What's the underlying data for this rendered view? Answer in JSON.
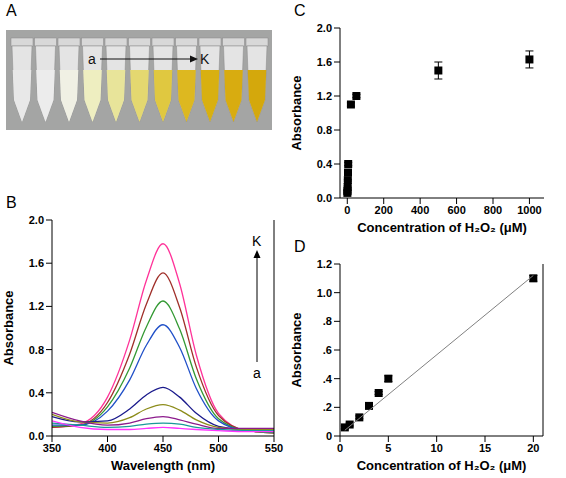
{
  "photo": {
    "panel_label": "A",
    "annotations": [
      "a",
      "K"
    ]
  },
  "chart_data": [
    {
      "panel_label": "B",
      "type": "line",
      "x_label": "Wavelength (nm)",
      "y_label": "Absorbance",
      "annotations": [
        "K",
        "a"
      ],
      "x": [
        350,
        375,
        400,
        420,
        435,
        450,
        465,
        480,
        500,
        525,
        550
      ],
      "series": [
        {
          "color": "#ff3399",
          "values": [
            0.08,
            0.11,
            0.36,
            0.89,
            1.44,
            1.78,
            1.41,
            0.75,
            0.21,
            0.05,
            0.03
          ]
        },
        {
          "color": "#a0302a",
          "values": [
            0.08,
            0.1,
            0.31,
            0.76,
            1.22,
            1.51,
            1.19,
            0.64,
            0.19,
            0.05,
            0.03
          ]
        },
        {
          "color": "#339933",
          "values": [
            0.09,
            0.1,
            0.27,
            0.63,
            1.01,
            1.25,
            0.99,
            0.53,
            0.16,
            0.05,
            0.03
          ]
        },
        {
          "color": "#2050c8",
          "values": [
            0.1,
            0.1,
            0.23,
            0.52,
            0.84,
            1.03,
            0.82,
            0.44,
            0.14,
            0.05,
            0.04
          ]
        },
        {
          "color": "#1a1a8c",
          "values": [
            0.18,
            0.13,
            0.14,
            0.25,
            0.38,
            0.45,
            0.36,
            0.21,
            0.09,
            0.06,
            0.06
          ]
        },
        {
          "color": "#8c8c1a",
          "values": [
            0.2,
            0.13,
            0.12,
            0.17,
            0.25,
            0.29,
            0.24,
            0.15,
            0.08,
            0.06,
            0.06
          ]
        },
        {
          "color": "#8c1a8c",
          "values": [
            0.22,
            0.14,
            0.1,
            0.12,
            0.16,
            0.18,
            0.15,
            0.11,
            0.07,
            0.07,
            0.07
          ]
        },
        {
          "color": "#1a9a9a",
          "values": [
            0.12,
            0.1,
            0.08,
            0.09,
            0.11,
            0.12,
            0.11,
            0.08,
            0.06,
            0.05,
            0.05
          ]
        },
        {
          "color": "#ff33ff",
          "values": [
            0.14,
            0.08,
            0.06,
            0.06,
            0.07,
            0.08,
            0.07,
            0.06,
            0.05,
            0.04,
            0.04
          ]
        }
      ],
      "xlim": [
        350,
        550
      ],
      "xticks": [
        350,
        400,
        450,
        500,
        550
      ],
      "ylim": [
        0,
        2
      ],
      "yticks": [
        {
          "value": 0,
          "label": "0.0"
        },
        {
          "value": 0.4,
          "label": "0.4"
        },
        {
          "value": 0.8,
          "label": "0.8"
        },
        {
          "value": 1.2,
          "label": "1.2"
        },
        {
          "value": 1.6,
          "label": "1.6"
        },
        {
          "value": 2,
          "label": "2.0"
        }
      ]
    },
    {
      "panel_label": "C",
      "type": "scatter",
      "x_label": "Concentration of H₂O₂ (μM)",
      "y_label": "Absorbance",
      "series": [
        {
          "type": "scatter",
          "marker": "square",
          "color": "#000000",
          "x": [
            0.5,
            1,
            2,
            3,
            4,
            5,
            20,
            50,
            500,
            1000
          ],
          "values": [
            0.06,
            0.08,
            0.13,
            0.21,
            0.3,
            0.4,
            1.1,
            1.2,
            1.5,
            1.63
          ],
          "error": [
            0.01,
            0.01,
            0.01,
            0.01,
            0.01,
            0.02,
            0.02,
            0.02,
            0.1,
            0.1
          ]
        }
      ],
      "xlim": [
        -40,
        1080
      ],
      "xticks": [
        0,
        200,
        400,
        600,
        800,
        1000
      ],
      "ylim": [
        0,
        2
      ],
      "yticks": [
        {
          "value": 0,
          "label": "0.0"
        },
        {
          "value": 0.4,
          "label": "0.4"
        },
        {
          "value": 0.8,
          "label": "0.8"
        },
        {
          "value": 1.2,
          "label": "1.2"
        },
        {
          "value": 1.6,
          "label": "1.6"
        },
        {
          "value": 2,
          "label": "2.0"
        }
      ]
    },
    {
      "panel_label": "D",
      "type": "scatter",
      "x_label": "Concentration of H₂O₂ (μM)",
      "y_label": "Absorbance",
      "series": [
        {
          "type": "scatter",
          "marker": "square",
          "color": "#000000",
          "x": [
            0.5,
            1,
            2,
            3,
            4,
            5,
            20
          ],
          "values": [
            0.06,
            0.08,
            0.13,
            0.21,
            0.3,
            0.4,
            1.1
          ],
          "error": [
            0.01,
            0.01,
            0.01,
            0.01,
            0.01,
            0.02,
            0.02
          ]
        },
        {
          "type": "line",
          "color": "#808080",
          "x": [
            0.5,
            20
          ],
          "values": [
            0.04,
            1.12
          ]
        }
      ],
      "xlim": [
        0,
        21
      ],
      "xticks": [
        0,
        5,
        10,
        15,
        20
      ],
      "ylim": [
        0,
        1.2
      ],
      "yticks": [
        0,
        {
          "value": 0.2,
          "label": ".2"
        },
        {
          "value": 0.4,
          "label": ".4"
        },
        {
          "value": 0.6,
          "label": ".6"
        },
        {
          "value": 0.8,
          "label": ".8"
        },
        {
          "value": 1,
          "label": "1.0"
        },
        {
          "value": 1.2,
          "label": "1.2"
        }
      ]
    }
  ]
}
